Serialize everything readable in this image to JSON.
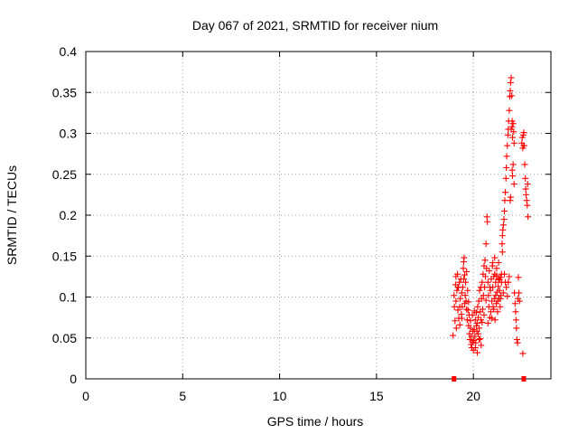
{
  "chart_data": {
    "type": "scatter",
    "title": "Day 067 of 2021, SRMTID for receiver nium",
    "xlabel": "GPS time / hours",
    "ylabel": "SRMTID / TECUs",
    "xlim": [
      0,
      24
    ],
    "ylim": [
      0,
      0.4
    ],
    "xticks": [
      0,
      5,
      10,
      15,
      20
    ],
    "xtick_labels": [
      "0",
      "5",
      "10",
      "15",
      "20"
    ],
    "yticks": [
      0,
      0.05,
      0.1,
      0.15,
      0.2,
      0.25,
      0.3,
      0.35,
      0.4
    ],
    "ytick_labels": [
      "0",
      "0.05",
      "0.1",
      "0.15",
      "0.2",
      "0.25",
      "0.3",
      "0.35",
      "0.4"
    ],
    "grid": true,
    "marker": "+",
    "color": "#ff0000",
    "series": [
      {
        "name": "SRMTID",
        "points": [
          [
            18.95,
            0.053
          ],
          [
            19.0,
            0.102
          ],
          [
            19.02,
            0.088
          ],
          [
            19.05,
            0.071
          ],
          [
            19.08,
            0.115
          ],
          [
            19.1,
            0.095
          ],
          [
            19.12,
            0.062
          ],
          [
            19.15,
            0.108
          ],
          [
            19.18,
            0.128
          ],
          [
            19.2,
            0.084
          ],
          [
            19.22,
            0.112
          ],
          [
            19.25,
            0.074
          ],
          [
            19.28,
            0.118
          ],
          [
            19.3,
            0.066
          ],
          [
            19.32,
            0.098
          ],
          [
            19.35,
            0.122
          ],
          [
            19.38,
            0.079
          ],
          [
            19.4,
            0.105
          ],
          [
            19.42,
            0.088
          ],
          [
            19.45,
            0.112
          ],
          [
            19.48,
            0.135
          ],
          [
            19.5,
            0.143
          ],
          [
            19.52,
            0.148
          ],
          [
            19.55,
            0.127
          ],
          [
            19.58,
            0.102
          ],
          [
            19.6,
            0.118
          ],
          [
            19.62,
            0.095
          ],
          [
            19.65,
            0.131
          ],
          [
            19.68,
            0.072
          ],
          [
            19.7,
            0.108
          ],
          [
            19.72,
            0.084
          ],
          [
            19.75,
            0.065
          ],
          [
            19.78,
            0.078
          ],
          [
            19.8,
            0.055
          ],
          [
            19.82,
            0.048
          ],
          [
            19.85,
            0.062
          ],
          [
            19.88,
            0.042
          ],
          [
            19.9,
            0.052
          ],
          [
            19.92,
            0.038
          ],
          [
            19.95,
            0.045
          ],
          [
            19.98,
            0.058
          ],
          [
            20.0,
            0.035
          ],
          [
            20.02,
            0.047
          ],
          [
            20.05,
            0.06
          ],
          [
            20.08,
            0.052
          ],
          [
            20.1,
            0.072
          ],
          [
            20.12,
            0.044
          ],
          [
            20.15,
            0.081
          ],
          [
            20.18,
            0.058
          ],
          [
            20.2,
            0.068
          ],
          [
            20.22,
            0.088
          ],
          [
            20.25,
            0.075
          ],
          [
            20.28,
            0.095
          ],
          [
            20.3,
            0.062
          ],
          [
            20.32,
            0.108
          ],
          [
            20.35,
            0.082
          ],
          [
            20.38,
            0.112
          ],
          [
            20.4,
            0.072
          ],
          [
            20.42,
            0.098
          ],
          [
            20.45,
            0.118
          ],
          [
            20.48,
            0.085
          ],
          [
            20.5,
            0.128
          ],
          [
            20.52,
            0.102
          ],
          [
            20.55,
            0.138
          ],
          [
            20.58,
            0.112
          ],
          [
            20.6,
            0.145
          ],
          [
            20.62,
            0.125
          ],
          [
            20.65,
            0.165
          ],
          [
            20.68,
            0.135
          ],
          [
            20.7,
            0.198
          ],
          [
            20.72,
            0.192
          ],
          [
            20.75,
            0.118
          ],
          [
            20.78,
            0.102
          ],
          [
            20.8,
            0.088
          ],
          [
            20.82,
            0.132
          ],
          [
            20.85,
            0.075
          ],
          [
            20.88,
            0.108
          ],
          [
            20.9,
            0.082
          ],
          [
            20.92,
            0.122
          ],
          [
            20.95,
            0.095
          ],
          [
            20.98,
            0.138
          ],
          [
            21.0,
            0.112
          ],
          [
            21.02,
            0.088
          ],
          [
            21.05,
            0.125
          ],
          [
            21.08,
            0.098
          ],
          [
            21.1,
            0.128
          ],
          [
            21.12,
            0.072
          ],
          [
            21.15,
            0.118
          ],
          [
            21.18,
            0.092
          ],
          [
            21.2,
            0.126
          ],
          [
            21.22,
            0.106
          ],
          [
            21.25,
            0.082
          ],
          [
            21.28,
            0.113
          ],
          [
            21.3,
            0.122
          ],
          [
            21.32,
            0.098
          ],
          [
            21.35,
            0.121
          ],
          [
            21.38,
            0.088
          ],
          [
            21.4,
            0.124
          ],
          [
            21.42,
            0.102
          ],
          [
            21.45,
            0.118
          ],
          [
            21.48,
            0.165
          ],
          [
            21.5,
            0.175
          ],
          [
            21.52,
            0.182
          ],
          [
            21.55,
            0.188
          ],
          [
            21.58,
            0.195
          ],
          [
            21.6,
            0.205
          ],
          [
            21.62,
            0.218
          ],
          [
            21.65,
            0.228
          ],
          [
            21.68,
            0.245
          ],
          [
            21.7,
            0.258
          ],
          [
            21.72,
            0.272
          ],
          [
            21.75,
            0.285
          ],
          [
            21.78,
            0.298
          ],
          [
            21.8,
            0.305
          ],
          [
            21.82,
            0.315
          ],
          [
            21.85,
            0.328
          ],
          [
            21.88,
            0.345
          ],
          [
            21.9,
            0.352
          ],
          [
            21.92,
            0.362
          ],
          [
            21.95,
            0.368
          ],
          [
            21.98,
            0.346
          ],
          [
            22.0,
            0.308
          ],
          [
            22.02,
            0.295
          ],
          [
            22.05,
            0.312
          ],
          [
            22.08,
            0.302
          ],
          [
            22.1,
            0.288
          ],
          [
            22.12,
            0.105
          ],
          [
            22.15,
            0.092
          ],
          [
            22.18,
            0.082
          ],
          [
            22.2,
            0.072
          ],
          [
            22.22,
            0.062
          ],
          [
            22.25,
            0.048
          ],
          [
            22.28,
            0.044
          ],
          [
            22.3,
            0.098
          ],
          [
            22.32,
            0.124
          ],
          [
            22.35,
            0.105
          ],
          [
            22.38,
            0.095
          ],
          [
            22.5,
            0.288
          ],
          [
            22.52,
            0.295
          ],
          [
            22.55,
            0.282
          ],
          [
            22.58,
            0.298
          ],
          [
            22.6,
            0.301
          ],
          [
            22.62,
            0.285
          ],
          [
            22.65,
            0.262
          ],
          [
            22.68,
            0.245
          ],
          [
            22.7,
            0.232
          ],
          [
            22.72,
            0.225
          ],
          [
            22.75,
            0.218
          ],
          [
            22.78,
            0.212
          ],
          [
            22.8,
            0.238
          ],
          [
            22.82,
            0.198
          ],
          [
            22.55,
            0.031
          ],
          [
            22.6,
            0.285
          ],
          [
            19.3,
            0.088
          ],
          [
            19.4,
            0.074
          ],
          [
            19.55,
            0.092
          ],
          [
            19.65,
            0.085
          ],
          [
            19.75,
            0.094
          ],
          [
            19.85,
            0.071
          ],
          [
            19.95,
            0.078
          ],
          [
            20.05,
            0.083
          ],
          [
            20.15,
            0.065
          ],
          [
            20.25,
            0.055
          ],
          [
            20.35,
            0.049
          ],
          [
            20.45,
            0.069
          ],
          [
            20.55,
            0.078
          ],
          [
            20.65,
            0.096
          ],
          [
            20.75,
            0.068
          ],
          [
            20.85,
            0.112
          ],
          [
            20.95,
            0.074
          ],
          [
            21.05,
            0.085
          ],
          [
            21.15,
            0.102
          ],
          [
            21.25,
            0.095
          ],
          [
            21.35,
            0.108
          ],
          [
            21.45,
            0.128
          ],
          [
            21.55,
            0.105
          ],
          [
            21.65,
            0.118
          ],
          [
            21.75,
            0.101
          ],
          [
            21.85,
            0.125
          ],
          [
            19.1,
            0.125
          ],
          [
            19.2,
            0.112
          ],
          [
            19.5,
            0.122
          ],
          [
            20.1,
            0.038
          ],
          [
            20.2,
            0.032
          ],
          [
            20.3,
            0.048
          ],
          [
            20.4,
            0.041
          ],
          [
            21.0,
            0.142
          ],
          [
            21.1,
            0.148
          ],
          [
            21.2,
            0.135
          ],
          [
            21.3,
            0.142
          ],
          [
            21.4,
            0.098
          ],
          [
            21.5,
            0.155
          ],
          [
            21.6,
            0.128
          ],
          [
            21.7,
            0.112
          ],
          [
            21.8,
            0.118
          ],
          [
            21.9,
            0.218
          ],
          [
            22.0,
            0.255
          ],
          [
            22.05,
            0.262
          ],
          [
            22.1,
            0.238
          ],
          [
            21.95,
            0.305
          ],
          [
            22.0,
            0.315
          ],
          [
            22.02,
            0.248
          ],
          [
            21.92,
            0.222
          ]
        ],
        "zero_points": [
          19.0,
          22.6
        ]
      }
    ]
  }
}
